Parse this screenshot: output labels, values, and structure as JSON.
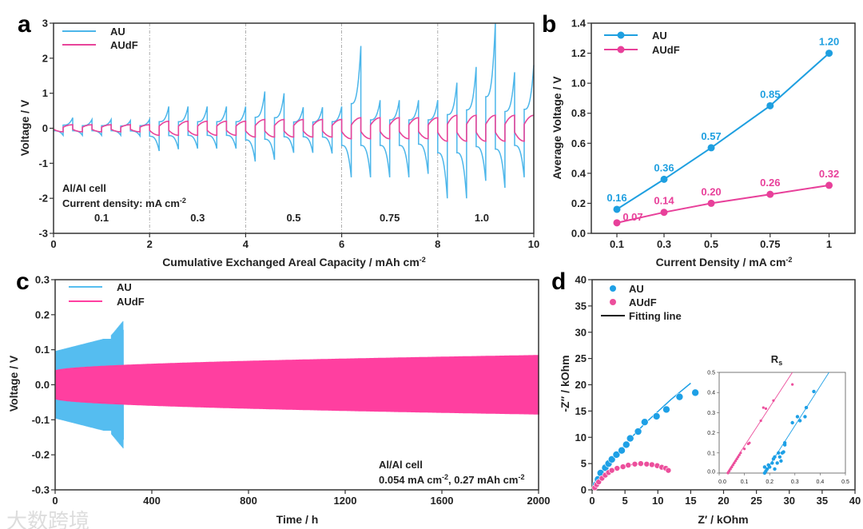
{
  "panel_labels": {
    "a": "a",
    "b": "b",
    "c": "c",
    "d": "d"
  },
  "watermark": "大数跨境",
  "chart_data": [
    {
      "id": "a",
      "type": "line",
      "xlabel": "Cumulative Exchanged Areal Capacity / mAh cm",
      "xlabel_sup": "-2",
      "ylabel": "Voltage / V",
      "xlim": [
        0,
        10
      ],
      "ylim": [
        -3,
        3
      ],
      "xticks": [
        0,
        2,
        4,
        6,
        8,
        10
      ],
      "yticks": [
        -3,
        -2,
        -1,
        0,
        1,
        2,
        3
      ],
      "segment_boundaries": [
        2,
        4,
        6,
        8
      ],
      "segment_labels": [
        "0.1",
        "0.3",
        "0.5",
        "0.75",
        "1.0"
      ],
      "annotation_cell": "Al/Al cell",
      "annotation_density": "Current density: mA cm",
      "annotation_density_sup": "-2",
      "cycle_length": 0.4,
      "legend_position": "top-left",
      "series": [
        {
          "name": "AU",
          "color": "#4cb6ea",
          "cycle_peaks": [
            0.3,
            0.25,
            0.25,
            0.22,
            0.25,
            0.62,
            0.62,
            0.62,
            0.62,
            0.62,
            1.05,
            1.0,
            0.6,
            0.6,
            0.62,
            2.35,
            0.8,
            0.8,
            0.8,
            0.8,
            1.3,
            1.75,
            3.0,
            1.6,
            1.8
          ],
          "cycle_troughs": [
            -0.2,
            -0.2,
            -0.2,
            -0.2,
            -0.22,
            -0.65,
            -0.6,
            -0.58,
            -0.58,
            -0.58,
            -0.95,
            -0.9,
            -0.7,
            -0.7,
            -0.72,
            -1.4,
            -1.4,
            -1.4,
            -1.4,
            -1.3,
            -2.0,
            -2.0,
            -1.5,
            -1.7,
            -1.4
          ]
        },
        {
          "name": "AUdF",
          "color": "#e8449a",
          "segment_amplitudes": [
            0.1,
            0.2,
            0.25,
            0.3,
            0.37
          ]
        }
      ]
    },
    {
      "id": "b",
      "type": "line",
      "xlabel": "Current Density / mA cm",
      "xlabel_sup": "-2",
      "ylabel": "Average Voltage / V",
      "xlim": [
        0,
        1.11
      ],
      "ylim": [
        0,
        1.4
      ],
      "xticks": [
        0.1,
        0.3,
        0.5,
        0.75,
        1
      ],
      "xtick_labels": [
        "0.1",
        "0.3",
        "0.5",
        "0.75",
        "1"
      ],
      "yticks": [
        0,
        0.2,
        0.4,
        0.6,
        0.8,
        1.0,
        1.2,
        1.4
      ],
      "ytick_labels": [
        "0.0",
        "0.2",
        "0.4",
        "0.6",
        "0.8",
        "1.0",
        "1.2",
        "1.4"
      ],
      "legend_position": "top-left",
      "x": [
        0.1,
        0.3,
        0.5,
        0.75,
        1
      ],
      "series": [
        {
          "name": "AU",
          "color": "#1e9fe0",
          "values": [
            0.16,
            0.36,
            0.57,
            0.85,
            1.2
          ],
          "labels": [
            "0.16",
            "0.36",
            "0.57",
            "0.85",
            "1.20"
          ]
        },
        {
          "name": "AUdF",
          "color": "#e8409a",
          "values": [
            0.07,
            0.14,
            0.2,
            0.26,
            0.32
          ],
          "labels": [
            "0.07",
            "0.14",
            "0.20",
            "0.26",
            "0.32"
          ]
        }
      ]
    },
    {
      "id": "c",
      "type": "line",
      "xlabel": "Time / h",
      "ylabel": "Voltage / V",
      "xlim": [
        0,
        2000
      ],
      "ylim": [
        -0.3,
        0.3
      ],
      "xticks": [
        0,
        400,
        800,
        1200,
        1600,
        2000
      ],
      "yticks": [
        -0.3,
        -0.2,
        -0.1,
        0.0,
        0.1,
        0.2,
        0.3
      ],
      "ytick_labels": [
        "-0.3",
        "-0.2",
        "-0.1",
        "0.0",
        "0.1",
        "0.2",
        "0.3"
      ],
      "annotation_cell": "Al/Al cell",
      "annotation_conditions": "0.054 mA cm",
      "annotation_conditions_sup": "-2",
      "annotation_conditions_2": ", 0.27 mAh cm",
      "annotation_conditions_2_sup": "-2",
      "legend_position": "top-left",
      "series": [
        {
          "name": "AU",
          "color": "#55bdf0",
          "t_end": 283,
          "amp_start": 0.11,
          "amp_end": 0.15,
          "final_spike": 0.21
        },
        {
          "name": "AUdF",
          "color": "#ff3fa0",
          "t_end": 2000,
          "amp_start": 0.04,
          "amp_end": 0.085
        }
      ]
    },
    {
      "id": "d",
      "type": "scatter",
      "xlabel": "Z′ / kOhm",
      "ylabel": "-Z′′ / kOhm",
      "xlim": [
        0,
        40
      ],
      "ylim": [
        0,
        40
      ],
      "xticks": [
        0,
        5,
        10,
        15,
        20,
        25,
        30,
        35,
        40
      ],
      "yticks": [
        0,
        5,
        10,
        15,
        20,
        25,
        30,
        35,
        40
      ],
      "legend_position": "top-left",
      "legend_fit": "Fitting line",
      "series": [
        {
          "name": "AU",
          "color": "#1ea0e6",
          "points": [
            [
              0.6,
              1
            ],
            [
              0.9,
              2
            ],
            [
              1.3,
              3.2
            ],
            [
              2,
              4.2
            ],
            [
              2.5,
              5
            ],
            [
              3,
              5.8
            ],
            [
              3.7,
              6.7
            ],
            [
              4.5,
              7.5
            ],
            [
              5.2,
              8.6
            ],
            [
              5.8,
              9.8
            ],
            [
              7,
              11.1
            ],
            [
              8,
              12.9
            ],
            [
              9.8,
              14
            ],
            [
              11.3,
              15.3
            ],
            [
              13.3,
              17.7
            ],
            [
              15.7,
              18.5
            ]
          ],
          "fit": [
            [
              0.2,
              0.5
            ],
            [
              1,
              2.3
            ],
            [
              2,
              4
            ],
            [
              4,
              7.2
            ],
            [
              6,
              10
            ],
            [
              8,
              12.6
            ],
            [
              10,
              14.9
            ],
            [
              12,
              17.2
            ],
            [
              15,
              20.3
            ]
          ]
        },
        {
          "name": "AUdF",
          "color": "#ec4f9c",
          "points": [
            [
              0.4,
              0.4
            ],
            [
              0.7,
              1
            ],
            [
              1,
              1.5
            ],
            [
              1.5,
              2.2
            ],
            [
              2,
              2.8
            ],
            [
              2.5,
              3.3
            ],
            [
              3,
              3.7
            ],
            [
              3.8,
              4.1
            ],
            [
              4.7,
              4.4
            ],
            [
              5.5,
              4.7
            ],
            [
              6.5,
              4.9
            ],
            [
              7.4,
              5
            ],
            [
              8.3,
              4.9
            ],
            [
              9.1,
              4.8
            ],
            [
              9.9,
              4.6
            ],
            [
              10.6,
              4.3
            ],
            [
              11.2,
              4.1
            ],
            [
              11.6,
              3.7
            ]
          ],
          "fit": [
            [
              0.3,
              0.2
            ],
            [
              1,
              1.6
            ],
            [
              2,
              2.8
            ],
            [
              3,
              3.6
            ],
            [
              4.5,
              4.3
            ],
            [
              6,
              4.8
            ],
            [
              7.5,
              4.95
            ],
            [
              9,
              4.8
            ],
            [
              10.5,
              4.4
            ],
            [
              11.6,
              3.9
            ]
          ]
        }
      ],
      "inset": {
        "title": "R",
        "title_sub": "s",
        "xlim": [
          0,
          0.5
        ],
        "ylim": [
          0,
          0.5
        ],
        "ticks": [
          0.0,
          0.1,
          0.2,
          0.3,
          0.4,
          0.5
        ],
        "tick_labels": [
          "0.0",
          "0.1",
          "0.2",
          "0.3",
          "0.4",
          "0.5"
        ],
        "series": [
          {
            "name": "AUdF",
            "color": "#ec4f9c",
            "points": [
              [
                0.035,
                0
              ],
              [
                0.04,
                0.01
              ],
              [
                0.045,
                0.02
              ],
              [
                0.05,
                0.03
              ],
              [
                0.055,
                0.04
              ],
              [
                0.06,
                0.05
              ],
              [
                0.065,
                0.06
              ],
              [
                0.07,
                0.07
              ],
              [
                0.075,
                0.08
              ],
              [
                0.08,
                0.09
              ],
              [
                0.085,
                0.1
              ],
              [
                0.1,
                0.12
              ],
              [
                0.115,
                0.145
              ],
              [
                0.12,
                0.15
              ],
              [
                0.165,
                0.26
              ],
              [
                0.175,
                0.325
              ],
              [
                0.185,
                0.32
              ],
              [
                0.215,
                0.36
              ],
              [
                0.29,
                0.44
              ]
            ],
            "fit": [
              [
                0.03,
                0
              ],
              [
                0.29,
                0.5
              ]
            ]
          },
          {
            "name": "AU",
            "color": "#1ea0e6",
            "points": [
              [
                0.18,
                0
              ],
              [
                0.185,
                0.01
              ],
              [
                0.19,
                0.02
              ],
              [
                0.18,
                0.03
              ],
              [
                0.195,
                0.04
              ],
              [
                0.2,
                0.03
              ],
              [
                0.21,
                0.05
              ],
              [
                0.215,
                0.07
              ],
              [
                0.22,
                0.08
              ],
              [
                0.22,
                0.02
              ],
              [
                0.23,
                0.05
              ],
              [
                0.235,
                0.1
              ],
              [
                0.24,
                0.08
              ],
              [
                0.245,
                0.06
              ],
              [
                0.25,
                0.1
              ],
              [
                0.255,
                0.105
              ],
              [
                0.26,
                0.14
              ],
              [
                0.26,
                0.15
              ],
              [
                0.29,
                0.25
              ],
              [
                0.31,
                0.28
              ],
              [
                0.32,
                0.26
              ],
              [
                0.34,
                0.28
              ],
              [
                0.345,
                0.325
              ],
              [
                0.375,
                0.405
              ]
            ],
            "fit": [
              [
                0.18,
                0
              ],
              [
                0.435,
                0.5
              ]
            ]
          }
        ]
      }
    }
  ]
}
